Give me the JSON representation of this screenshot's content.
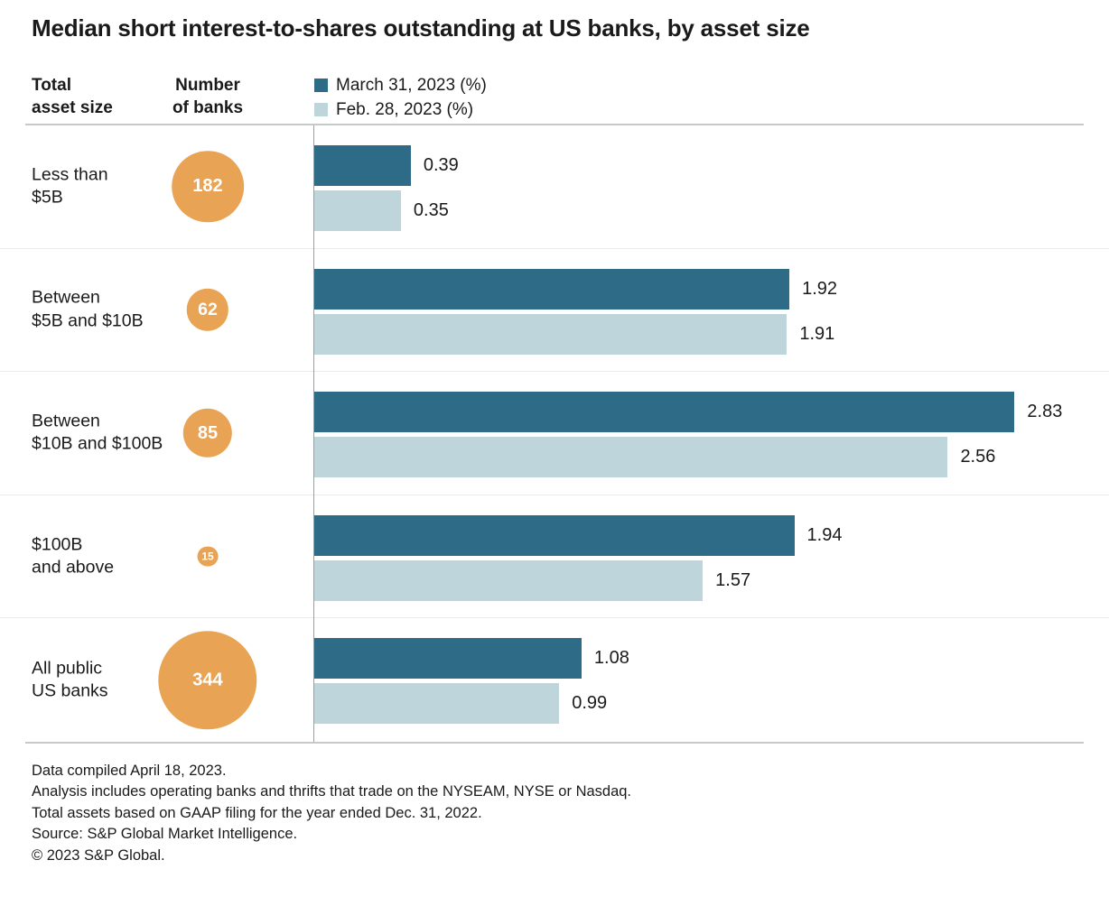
{
  "title": "Median short interest-to-shares outstanding at US banks, by asset size",
  "headers": {
    "asset_size": "Total\nasset size",
    "banks": "Number\nof banks"
  },
  "legend": [
    {
      "label": "March 31, 2023 (%)",
      "color": "#2d6b87"
    },
    {
      "label": "Feb. 28, 2023 (%)",
      "color": "#bed5dc"
    }
  ],
  "colors": {
    "march_bar": "#2d6b87",
    "feb_bar": "#bed5dc",
    "bank_circle": "#e8a454",
    "circle_text": "#ffffff"
  },
  "rows": [
    {
      "label": "Less than\n$5B",
      "banks": "182",
      "march": "0.39",
      "feb": "0.35"
    },
    {
      "label": "Between\n$5B and $10B",
      "banks": "62",
      "march": "1.92",
      "feb": "1.91"
    },
    {
      "label": "Between\n$10B and $100B",
      "banks": "85",
      "march": "2.83",
      "feb": "2.56"
    },
    {
      "label": "$100B\nand above",
      "banks": "15",
      "march": "1.94",
      "feb": "1.57"
    },
    {
      "label": "All public\nUS banks",
      "banks": "344",
      "march": "1.08",
      "feb": "0.99"
    }
  ],
  "footnotes": [
    "Data compiled April 18, 2023.",
    "Analysis includes operating banks and thrifts that trade on the NYSEAM, NYSE or Nasdaq.",
    "Total assets based on GAAP filing for the year ended Dec. 31, 2022.",
    "Source: S&P Global Market Intelligence.",
    "© 2023 S&P Global."
  ],
  "chart_data": {
    "type": "bar",
    "orientation": "horizontal",
    "title": "Median short interest-to-shares outstanding at US banks, by asset size",
    "categories": [
      "Less than $5B",
      "Between $5B and $10B",
      "Between $10B and $100B",
      "$100B and above",
      "All public US banks"
    ],
    "bank_counts": [
      182,
      62,
      85,
      15,
      344
    ],
    "series": [
      {
        "name": "March 31, 2023 (%)",
        "color": "#2d6b87",
        "values": [
          0.39,
          1.92,
          2.83,
          1.94,
          1.08
        ]
      },
      {
        "name": "Feb. 28, 2023 (%)",
        "color": "#bed5dc",
        "values": [
          0.35,
          1.91,
          2.56,
          1.57,
          0.99
        ]
      }
    ],
    "value_axis_max": 3.08,
    "grid": false,
    "legend_position": "top",
    "bubble_column": "Number of banks (bubble area proportional to count)"
  }
}
